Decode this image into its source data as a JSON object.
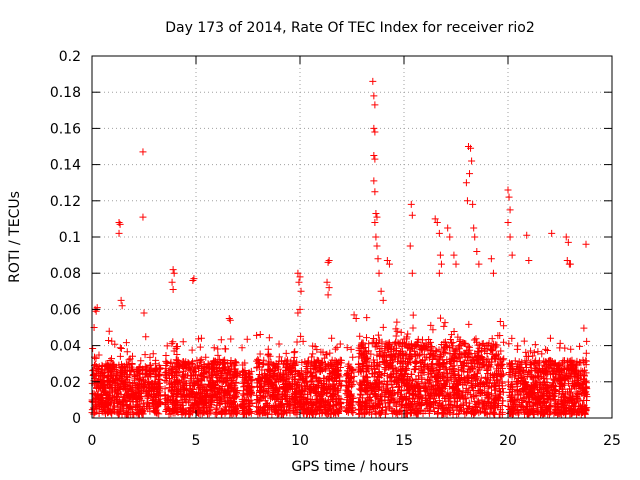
{
  "chart_data": {
    "type": "scatter",
    "title": "Day 173 of 2014, Rate Of TEC Index for receiver rio2",
    "xlabel": "GPS time / hours",
    "ylabel": "ROTI / TECUs",
    "xlim": [
      0,
      25
    ],
    "ylim": [
      0,
      0.2
    ],
    "xticks": [
      0,
      5,
      10,
      15,
      20,
      25
    ],
    "yticks": [
      0,
      0.02,
      0.04,
      0.06,
      0.08,
      0.1,
      0.12,
      0.14,
      0.16,
      0.18,
      0.2
    ],
    "xtick_labels": [
      "0",
      "5",
      "10",
      "15",
      "20",
      "25"
    ],
    "ytick_labels": [
      "0",
      "0.02",
      "0.04",
      "0.06",
      "0.08",
      "0.1",
      "0.12",
      "0.14",
      "0.16",
      "0.18",
      "0.2"
    ],
    "grid": true,
    "marker": "+",
    "color": "#ff0000",
    "series": [
      {
        "name": "rio2",
        "outliers": [
          [
            0.1,
            0.05
          ],
          [
            0.15,
            0.06
          ],
          [
            0.2,
            0.059
          ],
          [
            0.25,
            0.061
          ],
          [
            1.3,
            0.108
          ],
          [
            1.35,
            0.107
          ],
          [
            1.3,
            0.102
          ],
          [
            1.4,
            0.065
          ],
          [
            1.45,
            0.062
          ],
          [
            2.45,
            0.147
          ],
          [
            2.45,
            0.111
          ],
          [
            2.5,
            0.058
          ],
          [
            3.9,
            0.082
          ],
          [
            3.95,
            0.08
          ],
          [
            3.85,
            0.075
          ],
          [
            3.9,
            0.071
          ],
          [
            4.9,
            0.077
          ],
          [
            4.85,
            0.076
          ],
          [
            6.6,
            0.055
          ],
          [
            6.65,
            0.054
          ],
          [
            9.9,
            0.08
          ],
          [
            10.0,
            0.078
          ],
          [
            9.95,
            0.075
          ],
          [
            10.05,
            0.07
          ],
          [
            10.0,
            0.06
          ],
          [
            9.9,
            0.058
          ],
          [
            11.4,
            0.087
          ],
          [
            11.35,
            0.086
          ],
          [
            11.3,
            0.075
          ],
          [
            11.4,
            0.072
          ],
          [
            11.35,
            0.068
          ],
          [
            12.6,
            0.057
          ],
          [
            12.7,
            0.055
          ],
          [
            13.5,
            0.186
          ],
          [
            13.55,
            0.178
          ],
          [
            13.6,
            0.173
          ],
          [
            13.55,
            0.16
          ],
          [
            13.6,
            0.158
          ],
          [
            13.55,
            0.145
          ],
          [
            13.6,
            0.143
          ],
          [
            13.55,
            0.131
          ],
          [
            13.6,
            0.125
          ],
          [
            13.65,
            0.113
          ],
          [
            13.7,
            0.111
          ],
          [
            13.6,
            0.108
          ],
          [
            13.65,
            0.1
          ],
          [
            13.7,
            0.095
          ],
          [
            13.75,
            0.088
          ],
          [
            13.8,
            0.08
          ],
          [
            13.9,
            0.07
          ],
          [
            14.0,
            0.065
          ],
          [
            14.2,
            0.087
          ],
          [
            14.3,
            0.085
          ],
          [
            15.35,
            0.118
          ],
          [
            15.4,
            0.112
          ],
          [
            15.3,
            0.095
          ],
          [
            15.4,
            0.08
          ],
          [
            16.5,
            0.11
          ],
          [
            16.6,
            0.108
          ],
          [
            16.7,
            0.102
          ],
          [
            16.75,
            0.09
          ],
          [
            16.8,
            0.085
          ],
          [
            16.7,
            0.08
          ],
          [
            17.1,
            0.105
          ],
          [
            17.2,
            0.1
          ],
          [
            17.4,
            0.09
          ],
          [
            17.5,
            0.085
          ],
          [
            18.0,
            0.13
          ],
          [
            18.05,
            0.12
          ],
          [
            18.1,
            0.15
          ],
          [
            18.2,
            0.149
          ],
          [
            18.25,
            0.142
          ],
          [
            18.15,
            0.135
          ],
          [
            18.3,
            0.118
          ],
          [
            18.35,
            0.105
          ],
          [
            18.4,
            0.1
          ],
          [
            18.5,
            0.092
          ],
          [
            18.6,
            0.085
          ],
          [
            19.2,
            0.088
          ],
          [
            19.3,
            0.08
          ],
          [
            20.0,
            0.126
          ],
          [
            20.05,
            0.122
          ],
          [
            20.1,
            0.115
          ],
          [
            20.0,
            0.108
          ],
          [
            20.1,
            0.1
          ],
          [
            20.2,
            0.09
          ],
          [
            20.9,
            0.101
          ],
          [
            21.0,
            0.087
          ],
          [
            22.1,
            0.102
          ],
          [
            22.8,
            0.1
          ],
          [
            22.9,
            0.097
          ],
          [
            22.85,
            0.087
          ],
          [
            22.95,
            0.085
          ],
          [
            23.0,
            0.085
          ],
          [
            23.75,
            0.096
          ]
        ]
      }
    ],
    "activity_segments": [
      {
        "start": 0.0,
        "end": 3.3,
        "level": 0.028
      },
      {
        "start": 3.5,
        "end": 7.0,
        "level": 0.03
      },
      {
        "start": 7.2,
        "end": 7.7,
        "level": 0.024
      },
      {
        "start": 7.9,
        "end": 12.0,
        "level": 0.03
      },
      {
        "start": 12.2,
        "end": 12.6,
        "level": 0.026
      },
      {
        "start": 12.8,
        "end": 19.8,
        "level": 0.04
      },
      {
        "start": 20.0,
        "end": 23.8,
        "level": 0.03
      }
    ]
  }
}
